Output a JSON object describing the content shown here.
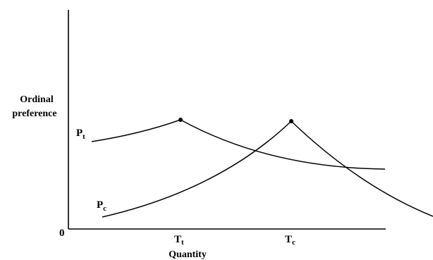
{
  "diagram": {
    "y_axis_label_line1": "Ordinal",
    "y_axis_label_line2": "preference",
    "x_axis_label": "Quantity",
    "origin_label": "0",
    "curve_t": {
      "letter": "P",
      "subscript": "t"
    },
    "curve_c": {
      "letter": "P",
      "subscript": "c"
    },
    "tick_t": {
      "letter": "T",
      "subscript": "t"
    },
    "tick_c": {
      "letter": "T",
      "subscript": "c"
    }
  }
}
